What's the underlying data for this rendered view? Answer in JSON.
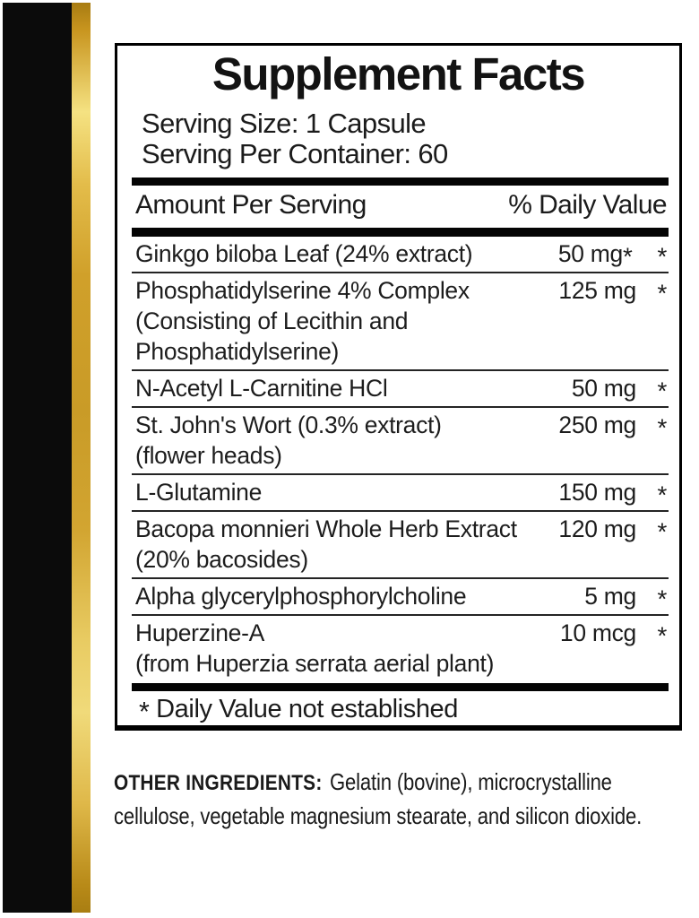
{
  "colors": {
    "stripe_black": "#0b0b0b",
    "stripe_gold_dark": "#b8860b",
    "stripe_gold_light": "#f5e282",
    "panel_border": "#000000",
    "text": "#1a1a1a"
  },
  "panel": {
    "title": "Supplement Facts",
    "serving_size": "Serving Size: 1 Capsule",
    "servings_per_container": "Serving Per Container: 60",
    "header": {
      "amount_label": "Amount Per Serving",
      "daily_value_label": "% Daily Value"
    },
    "rows": [
      {
        "name": "Ginkgo biloba Leaf (24% extract)",
        "amount": "50 mg",
        "amount_star": "*",
        "daily_value": "*",
        "continuation": []
      },
      {
        "name": "Phosphatidylserine 4% Complex",
        "amount": "125 mg",
        "daily_value": "*",
        "continuation": [
          "(Consisting of Lecithin and",
          "Phosphatidylserine)"
        ]
      },
      {
        "name": "N-Acetyl L-Carnitine HCl",
        "amount": "50 mg",
        "daily_value": "*",
        "continuation": []
      },
      {
        "name": "St. John's Wort (0.3% extract)",
        "amount": "250 mg",
        "daily_value": "*",
        "continuation": [
          "(flower heads)"
        ]
      },
      {
        "name": "L-Glutamine",
        "amount": "150 mg",
        "daily_value": "*",
        "continuation": []
      },
      {
        "name": "Bacopa monnieri Whole Herb Extract",
        "amount": "120 mg",
        "daily_value": "*",
        "continuation": [
          "(20% bacosides)"
        ]
      },
      {
        "name": "Alpha glycerylphosphorylcholine",
        "amount": "5 mg",
        "daily_value": "*",
        "continuation": []
      },
      {
        "name": "Huperzine-A",
        "amount": "10 mcg",
        "daily_value": "*",
        "continuation": [
          "(from Huperzia serrata aerial plant)"
        ]
      }
    ],
    "footnote": {
      "star": "*",
      "text": "Daily Value not established"
    }
  },
  "other_ingredients": {
    "label": "OTHER INGREDIENTS:",
    "lines": [
      "Gelatin (bovine), microcrystalline",
      "cellulose, vegetable magnesium stearate, and silicon dioxide."
    ]
  }
}
